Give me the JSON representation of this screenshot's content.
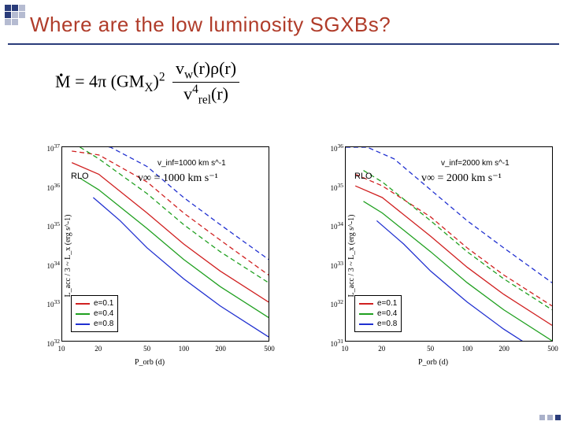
{
  "title": "Where are the low luminosity SGXBs?",
  "equation": {
    "prefix": "M",
    "middle": " = 4π (GM",
    "subX": "X",
    "exp2": "2",
    "num_v": "v",
    "num_w": "w",
    "num_r": "(r)ρ(r)",
    "den_v": "v",
    "den_rel": "rel",
    "den_exp": "4",
    "den_r": "(r)"
  },
  "chartLeft": {
    "type": "line",
    "xlabel": "P_orb (d)",
    "ylabel": "L_acc / 3 ~ L_x (erg s^-1)",
    "rlo": "RLO",
    "vinf_small": "v_inf=1000 km s^-1",
    "vinf_eq": "v∞ = 1000 km s⁻¹",
    "xlim": [
      10,
      500
    ],
    "xlog": true,
    "xticks": [
      "10",
      "20",
      "50",
      "100",
      "200",
      "500"
    ],
    "ylim_exp": [
      32,
      37
    ],
    "ylog": true,
    "yticks": [
      "10^32",
      "10^33",
      "10^34",
      "10^35",
      "10^36",
      "10^37"
    ],
    "legend": [
      {
        "label": "e=0.1",
        "color": "#d02020"
      },
      {
        "label": "e=0.4",
        "color": "#20a020"
      },
      {
        "label": "e=0.8",
        "color": "#2030d0"
      }
    ],
    "curves": [
      {
        "color": "#d02020",
        "dash": "",
        "pts": [
          [
            12,
            36.6
          ],
          [
            20,
            36.3
          ],
          [
            50,
            35.3
          ],
          [
            100,
            34.5
          ],
          [
            200,
            33.8
          ],
          [
            500,
            33.0
          ]
        ]
      },
      {
        "color": "#d02020",
        "dash": "6,4",
        "pts": [
          [
            12,
            36.9
          ],
          [
            20,
            36.8
          ],
          [
            50,
            36.1
          ],
          [
            100,
            35.3
          ],
          [
            200,
            34.6
          ],
          [
            500,
            33.7
          ]
        ]
      },
      {
        "color": "#20a020",
        "dash": "",
        "pts": [
          [
            14,
            36.2
          ],
          [
            20,
            35.9
          ],
          [
            50,
            34.9
          ],
          [
            100,
            34.1
          ],
          [
            200,
            33.4
          ],
          [
            500,
            32.6
          ]
        ]
      },
      {
        "color": "#20a020",
        "dash": "6,4",
        "pts": [
          [
            14,
            37.0
          ],
          [
            20,
            36.7
          ],
          [
            50,
            35.8
          ],
          [
            100,
            35.0
          ],
          [
            200,
            34.3
          ],
          [
            500,
            33.5
          ]
        ]
      },
      {
        "color": "#2030d0",
        "dash": "",
        "pts": [
          [
            18,
            35.7
          ],
          [
            30,
            35.1
          ],
          [
            50,
            34.4
          ],
          [
            100,
            33.6
          ],
          [
            200,
            32.9
          ],
          [
            500,
            32.1
          ]
        ]
      },
      {
        "color": "#2030d0",
        "dash": "6,4",
        "pts": [
          [
            10,
            37.1
          ],
          [
            15,
            37.1
          ],
          [
            25,
            37.0
          ],
          [
            50,
            36.5
          ],
          [
            100,
            35.7
          ],
          [
            200,
            35.0
          ],
          [
            500,
            34.1
          ]
        ]
      }
    ]
  },
  "chartRight": {
    "type": "line",
    "xlabel": "P_orb (d)",
    "ylabel": "L_acc / 3 ~ L_x (erg s^-1)",
    "rlo": "RLO",
    "vinf_small": "v_inf=2000 km s^-1",
    "vinf_eq": "v∞ = 2000 km s⁻¹",
    "xlim": [
      10,
      500
    ],
    "xlog": true,
    "xticks": [
      "10",
      "20",
      "50",
      "100",
      "200",
      "500"
    ],
    "ylim_exp": [
      31,
      36
    ],
    "ylog": true,
    "yticks": [
      "10^31",
      "10^32",
      "10^33",
      "10^34",
      "10^35",
      "10^36"
    ],
    "legend": [
      {
        "label": "e=0.1",
        "color": "#d02020"
      },
      {
        "label": "e=0.4",
        "color": "#20a020"
      },
      {
        "label": "e=0.8",
        "color": "#2030d0"
      }
    ],
    "curves": [
      {
        "color": "#d02020",
        "dash": "",
        "pts": [
          [
            12,
            35.0
          ],
          [
            20,
            34.7
          ],
          [
            50,
            33.7
          ],
          [
            100,
            32.9
          ],
          [
            200,
            32.2
          ],
          [
            500,
            31.4
          ]
        ]
      },
      {
        "color": "#d02020",
        "dash": "6,4",
        "pts": [
          [
            12,
            35.3
          ],
          [
            20,
            35.0
          ],
          [
            50,
            34.2
          ],
          [
            100,
            33.4
          ],
          [
            200,
            32.7
          ],
          [
            500,
            31.9
          ]
        ]
      },
      {
        "color": "#20a020",
        "dash": "",
        "pts": [
          [
            14,
            34.6
          ],
          [
            20,
            34.3
          ],
          [
            50,
            33.3
          ],
          [
            100,
            32.5
          ],
          [
            200,
            31.8
          ],
          [
            500,
            31.0
          ]
        ]
      },
      {
        "color": "#20a020",
        "dash": "6,4",
        "pts": [
          [
            14,
            35.4
          ],
          [
            20,
            35.1
          ],
          [
            50,
            34.1
          ],
          [
            100,
            33.3
          ],
          [
            200,
            32.6
          ],
          [
            500,
            31.8
          ]
        ]
      },
      {
        "color": "#2030d0",
        "dash": "",
        "pts": [
          [
            18,
            34.1
          ],
          [
            30,
            33.5
          ],
          [
            50,
            32.8
          ],
          [
            100,
            32.0
          ],
          [
            200,
            31.3
          ],
          [
            500,
            30.5
          ]
        ]
      },
      {
        "color": "#2030d0",
        "dash": "6,4",
        "pts": [
          [
            10,
            36.0
          ],
          [
            15,
            36.0
          ],
          [
            25,
            35.7
          ],
          [
            50,
            34.9
          ],
          [
            100,
            34.1
          ],
          [
            200,
            33.4
          ],
          [
            500,
            32.5
          ]
        ]
      }
    ]
  },
  "colors": {
    "title": "#b03c2a",
    "accent": "#2a3c7a",
    "black": "#000000"
  }
}
